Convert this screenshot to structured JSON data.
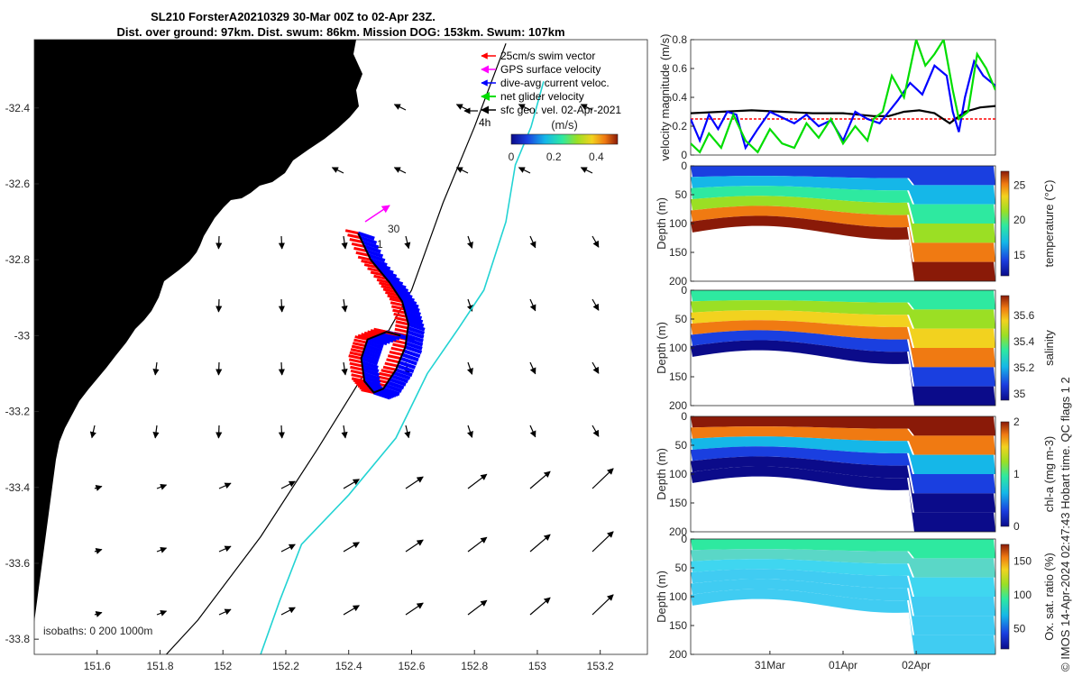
{
  "header": {
    "title_line1": "SL210 ForsterA20210329 30-Mar 00Z to 02-Apr 23Z.",
    "title_line2": "Dist. over ground: 97km. Dist. swum: 86km. Mission DOG: 153km. Swum: 107km"
  },
  "colors": {
    "land": "#fbc895",
    "isobath_200": "#000000",
    "isobath_1000": "#22d3d3",
    "swim_vector": "#ff0000",
    "gps_velocity": "#ff00ff",
    "dive_avg_current": "#0000ff",
    "net_glider_velocity": "#00dd00",
    "sfc_geo_vel": "#000000"
  },
  "chart_data": [
    {
      "type": "map",
      "name": "glider-track-map",
      "xlim": [
        151.4,
        153.35
      ],
      "ylim": [
        -33.84,
        -32.22
      ],
      "xticks": [
        "151.6",
        "151.8",
        "152",
        "152.2",
        "152.4",
        "152.6",
        "152.8",
        "153",
        "153.2"
      ],
      "yticks": [
        "-32.4",
        "-32.6",
        "-32.8",
        "-33",
        "-33.2",
        "-33.4",
        "-33.6",
        "-33.8"
      ],
      "legend": {
        "placement": "top-right",
        "entries": [
          "25cm/s swim vector",
          "GPS surface velocity",
          "dive-avg current veloc.",
          "net glider velocity",
          "sfc geo. vel. 02-Apr-2021"
        ]
      },
      "time_label": "4h",
      "colorbar": {
        "label": "(m/s)",
        "ticks": [
          "0",
          "0.2",
          "0.4"
        ],
        "range": [
          0,
          0.5
        ]
      },
      "track_labels": [
        "30",
        "1"
      ],
      "isobaths_note": "isobaths: 0   200  1000m",
      "track": [
        [
          152.43,
          -32.73
        ],
        [
          152.47,
          -32.8
        ],
        [
          152.53,
          -32.86
        ],
        [
          152.57,
          -32.91
        ],
        [
          152.59,
          -32.97
        ],
        [
          152.58,
          -33.03
        ],
        [
          152.55,
          -33.09
        ],
        [
          152.51,
          -33.14
        ],
        [
          152.48,
          -33.15
        ],
        [
          152.45,
          -33.12
        ],
        [
          152.44,
          -33.06
        ],
        [
          152.46,
          -33.01
        ],
        [
          152.52,
          -32.99
        ],
        [
          152.565,
          -33.0
        ]
      ],
      "track_200m_isobath": [
        [
          152.9,
          -32.23
        ],
        [
          152.8,
          -32.45
        ],
        [
          152.7,
          -32.65
        ],
        [
          152.6,
          -32.88
        ],
        [
          152.45,
          -33.1
        ],
        [
          152.3,
          -33.3
        ],
        [
          152.12,
          -33.53
        ],
        [
          151.92,
          -33.75
        ],
        [
          151.82,
          -33.84
        ]
      ],
      "track_1000m_isobath": [
        [
          153.02,
          -32.33
        ],
        [
          152.98,
          -32.45
        ],
        [
          152.93,
          -32.55
        ],
        [
          152.9,
          -32.7
        ],
        [
          152.83,
          -32.88
        ],
        [
          152.75,
          -32.98
        ],
        [
          152.65,
          -33.1
        ],
        [
          152.55,
          -33.27
        ],
        [
          152.4,
          -33.42
        ],
        [
          152.25,
          -33.55
        ],
        [
          152.18,
          -33.7
        ],
        [
          152.12,
          -33.84
        ]
      ]
    },
    {
      "type": "line",
      "name": "velocity-magnitude",
      "ylabel": "velocity magnitude (m/s)",
      "xlim": [
        0,
        1
      ],
      "ylim": [
        0,
        0.8
      ],
      "yticks": [
        "0",
        "0.2",
        "0.4",
        "0.6",
        "0.8"
      ],
      "series": [
        {
          "color": "#ff0000",
          "x": [
            0,
            1
          ],
          "values": [
            0.25,
            0.25
          ]
        },
        {
          "color": "#000000",
          "x": [
            0,
            0.1,
            0.2,
            0.3,
            0.4,
            0.5,
            0.55,
            0.6,
            0.65,
            0.7,
            0.75,
            0.8,
            0.85,
            0.9,
            0.95,
            1
          ],
          "values": [
            0.29,
            0.3,
            0.31,
            0.3,
            0.29,
            0.29,
            0.28,
            0.27,
            0.27,
            0.3,
            0.31,
            0.29,
            0.22,
            0.3,
            0.33,
            0.34
          ]
        },
        {
          "color": "#0000ff",
          "x": [
            0,
            0.03,
            0.06,
            0.09,
            0.12,
            0.15,
            0.18,
            0.22,
            0.26,
            0.3,
            0.34,
            0.38,
            0.42,
            0.46,
            0.5,
            0.54,
            0.58,
            0.62,
            0.65,
            0.68,
            0.72,
            0.76,
            0.8,
            0.84,
            0.86,
            0.88,
            0.9,
            0.93,
            0.96,
            1
          ],
          "values": [
            0.25,
            0.1,
            0.28,
            0.18,
            0.3,
            0.28,
            0.05,
            0.18,
            0.3,
            0.26,
            0.22,
            0.28,
            0.2,
            0.24,
            0.1,
            0.3,
            0.25,
            0.22,
            0.3,
            0.38,
            0.5,
            0.42,
            0.62,
            0.55,
            0.3,
            0.16,
            0.4,
            0.65,
            0.55,
            0.48
          ]
        },
        {
          "color": "#00dd00",
          "x": [
            0,
            0.03,
            0.06,
            0.1,
            0.14,
            0.18,
            0.22,
            0.26,
            0.3,
            0.34,
            0.38,
            0.42,
            0.46,
            0.5,
            0.54,
            0.58,
            0.6,
            0.63,
            0.66,
            0.7,
            0.74,
            0.77,
            0.8,
            0.83,
            0.86,
            0.88,
            0.91,
            0.94,
            0.97,
            1
          ],
          "values": [
            0.08,
            0.02,
            0.15,
            0.05,
            0.28,
            0.1,
            0.02,
            0.18,
            0.08,
            0.05,
            0.22,
            0.12,
            0.25,
            0.08,
            0.2,
            0.1,
            0.25,
            0.3,
            0.55,
            0.4,
            0.8,
            0.62,
            0.7,
            0.8,
            0.45,
            0.25,
            0.3,
            0.7,
            0.6,
            0.45
          ]
        }
      ]
    },
    {
      "type": "heatmap",
      "name": "temperature-section",
      "ylabel": "Depth (m)",
      "colorbar_label": "temperature (°C)",
      "colorbar_ticks": [
        "15",
        "20",
        "25"
      ],
      "cbar_range": [
        12,
        27
      ],
      "yticks": [
        "0",
        "50",
        "100",
        "150",
        "200"
      ],
      "ylim": [
        0,
        200
      ]
    },
    {
      "type": "heatmap",
      "name": "salinity-section",
      "ylabel": "Depth (m)",
      "colorbar_label": "salinity",
      "colorbar_ticks": [
        "35",
        "35.2",
        "35.4",
        "35.6"
      ],
      "cbar_range": [
        34.95,
        35.75
      ],
      "yticks": [
        "0",
        "50",
        "100",
        "150",
        "200"
      ],
      "ylim": [
        0,
        200
      ]
    },
    {
      "type": "heatmap",
      "name": "chla-section",
      "ylabel": "Depth (m)",
      "colorbar_label": "chl-a (mg m-3)",
      "colorbar_ticks": [
        "0",
        "1",
        "2"
      ],
      "cbar_range": [
        0,
        2
      ],
      "yticks": [
        "0",
        "50",
        "100",
        "150",
        "200"
      ],
      "ylim": [
        0,
        200
      ]
    },
    {
      "type": "heatmap",
      "name": "oxygen-section",
      "ylabel": "Depth (m)",
      "colorbar_label": "Ox. sat. ratio (%)",
      "colorbar_ticks": [
        "50",
        "100",
        "150"
      ],
      "cbar_range": [
        20,
        175
      ],
      "yticks": [
        "0",
        "50",
        "100",
        "150",
        "200"
      ],
      "ylim": [
        0,
        200
      ],
      "xticks": [
        "31Mar",
        "01Apr",
        "02Apr"
      ]
    }
  ],
  "footer": {
    "credit": "© IMOS 14-Apr-2024 02:47:43 Hobart time. QC flags 1  2"
  }
}
